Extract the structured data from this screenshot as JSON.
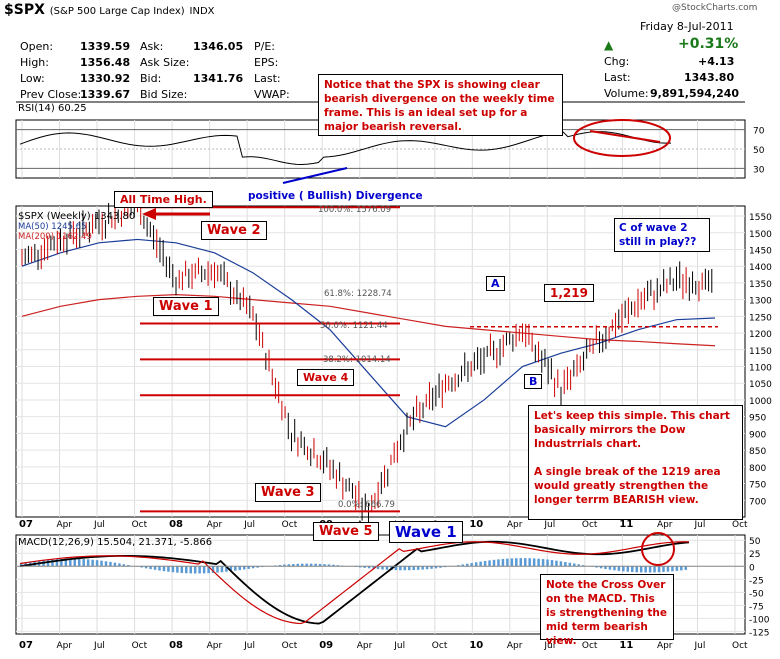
{
  "header": {
    "symbol": "$SPX",
    "name": "(S&P 500 Large Cap Index)",
    "exchange": "INDX",
    "copyright": "@StockCharts.com",
    "date": "Friday  8-Jul-2011",
    "change_pct": "+0.31%",
    "chg_label": "Chg:",
    "chg_value": "+4.13",
    "last_label": "Last:",
    "last_value": "1343.80",
    "volume_label": "Volume:",
    "volume_value": "9,891,594,240",
    "open_label": "Open:",
    "open_value": "1339.59",
    "high_label": "High:",
    "high_value": "1356.48",
    "low_label": "Low:",
    "low_value": "1330.92",
    "prevclose_label": "Prev Close:",
    "prevclose_value": "1339.67",
    "ask_label": "Ask:",
    "ask_value": "1346.05",
    "asksize_label": "Ask Size:",
    "bid_label": "Bid:",
    "bid_value": "1341.76",
    "bidsize_label": "Bid Size:",
    "pe_label": "P/E:",
    "eps_label": "EPS:",
    "last2_label": "Last:",
    "vwap_label": "VWAP:"
  },
  "colors": {
    "red": "#cc0000",
    "blue": "#0000cc",
    "ma50": "#1a3d99",
    "ma200": "#cc2222",
    "green": "#1a7a1a"
  },
  "chart_data": [
    {
      "type": "line",
      "panel": "RSI",
      "legend": "RSI(14) 60.25",
      "ylim": [
        20,
        80
      ],
      "ytick_labels": [
        "70",
        "50",
        "30"
      ],
      "ytick_values": [
        70,
        50,
        30
      ],
      "levels": [
        70,
        30
      ]
    },
    {
      "type": "candlestick",
      "panel": "price",
      "legend_series": [
        "$SPX (Weekly) 1343.80",
        "MA(50) 1245.65",
        "MA(200) 1162.49"
      ],
      "ylim": [
        650,
        1580
      ],
      "ytick_values": [
        700,
        750,
        800,
        850,
        900,
        950,
        1000,
        1050,
        1100,
        1150,
        1200,
        1250,
        1300,
        1350,
        1400,
        1450,
        1500,
        1550
      ],
      "ytick_labels": [
        "700",
        "750",
        "800",
        "850",
        "900",
        "950",
        "1000",
        "1050",
        "1100",
        "1150",
        "1200",
        "1250",
        "1300",
        "1350",
        "1400",
        "1450",
        "1500",
        "1550"
      ],
      "series": [
        {
          "name": "$SPX (Weekly)",
          "x": [
            "2007-01",
            "2007-04",
            "2007-07",
            "2007-10",
            "2008-01",
            "2008-04",
            "2008-07",
            "2008-10",
            "2008-11",
            "2009-03",
            "2009-06",
            "2009-10",
            "2010-01",
            "2010-04",
            "2010-07",
            "2010-10",
            "2011-01",
            "2011-04",
            "2011-07"
          ],
          "values": [
            1420,
            1480,
            1530,
            1576,
            1360,
            1390,
            1250,
            900,
            800,
            667,
            920,
            1050,
            1120,
            1210,
            1030,
            1180,
            1290,
            1360,
            1343
          ]
        },
        {
          "name": "MA(50)",
          "values": [
            1400,
            1440,
            1470,
            1480,
            1470,
            1440,
            1380,
            1300,
            1210,
            1080,
            950,
            920,
            1000,
            1100,
            1140,
            1170,
            1210,
            1240,
            1245
          ]
        },
        {
          "name": "MA(200)",
          "values": [
            1250,
            1280,
            1300,
            1310,
            1315,
            1310,
            1300,
            1290,
            1280,
            1260,
            1240,
            1220,
            1210,
            1200,
            1190,
            1180,
            1175,
            1168,
            1162
          ]
        }
      ],
      "fib_levels": [
        {
          "label": "100.0%: 1576.09",
          "value": 1576.09
        },
        {
          "label": "61.8%: 1228.74",
          "value": 1228.74
        },
        {
          "label": "50.0%: 1121.44",
          "value": 1121.44
        },
        {
          "label": "38.2%: 1014.14",
          "value": 1014.14
        },
        {
          "label": "0.0%: 666.79",
          "value": 666.79
        }
      ],
      "support_line": 1219
    },
    {
      "type": "line",
      "panel": "MACD",
      "legend": "MACD(12,26,9) 15.504, 21.371, -5.866",
      "ylim": [
        -130,
        60
      ],
      "ytick_values": [
        50,
        25,
        0,
        -25,
        -50,
        -75,
        -100,
        -125
      ],
      "ytick_labels": [
        "50",
        "25",
        "0",
        "-25",
        "-50",
        "-75",
        "-100",
        "-125"
      ]
    }
  ],
  "x_axis": [
    "07",
    "Apr",
    "Jul",
    "Oct",
    "08",
    "Apr",
    "Jul",
    "Oct",
    "09",
    "Apr",
    "Jul",
    "Oct",
    "10",
    "Apr",
    "Jul",
    "Oct",
    "11",
    "Apr",
    "Jul",
    "Oct"
  ],
  "annotations": {
    "note_top": "Notice that the SPX is showing clear bearish divergence on the weekly time frame. This is an ideal set up for a major bearish reversal.",
    "divergence": "positive ( Bullish) Divergence",
    "ath": "All  Time High.",
    "wave1": "Wave  1",
    "wave2": "Wave 2",
    "wave3": "Wave 3",
    "wave4": "Wave 4",
    "wave5": "Wave 5",
    "wave1b": "Wave 1",
    "label_a": "A",
    "label_b": "B",
    "label_1219": "1,219",
    "c_wave": "C of wave 2 still in play??",
    "note_mid": "Let's keep this simple. This chart basically mirrors the Dow Industrrials chart.",
    "note_mid2": "A single break of the 1219 area would greatly strengthen the longer terrm BEARISH view.",
    "note_macd": "Note the Cross Over on the MACD.  This is strengthening the mid term bearish view."
  }
}
